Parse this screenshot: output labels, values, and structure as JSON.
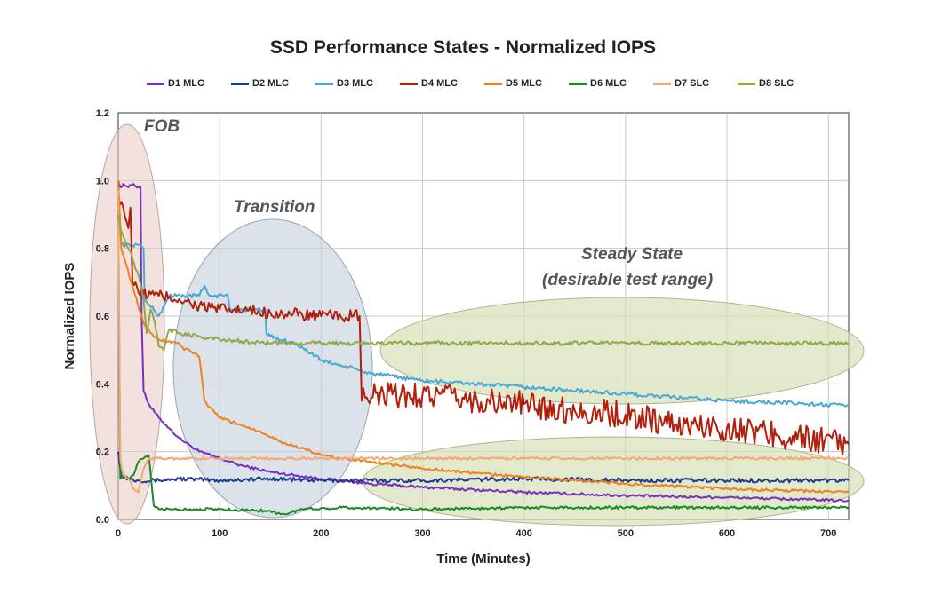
{
  "chart_data": {
    "type": "line",
    "title": "SSD Performance States - Normalized IOPS",
    "xlabel": "Time (Minutes)",
    "ylabel": "Normalized IOPS",
    "xlim": [
      0,
      720
    ],
    "ylim": [
      0,
      1.2
    ],
    "xticks": [
      0,
      100,
      200,
      300,
      400,
      500,
      600,
      700
    ],
    "yticks": [
      0.0,
      0.2,
      0.4,
      0.6,
      0.8,
      1.0,
      1.2
    ],
    "ytick_labels": [
      "0.0",
      "0.2",
      "0.4",
      "0.6",
      "0.8",
      "1.0",
      "1.2"
    ],
    "grid": true,
    "legend_position": "top",
    "series": [
      {
        "name": "D1 MLC",
        "color": "#7b2fbe",
        "points": [
          [
            0,
            1.0
          ],
          [
            2,
            0.98
          ],
          [
            5,
            0.99
          ],
          [
            10,
            0.98
          ],
          [
            15,
            0.99
          ],
          [
            20,
            0.98
          ],
          [
            22,
            0.98
          ],
          [
            23,
            0.6
          ],
          [
            25,
            0.38
          ],
          [
            30,
            0.34
          ],
          [
            40,
            0.3
          ],
          [
            50,
            0.27
          ],
          [
            60,
            0.24
          ],
          [
            70,
            0.22
          ],
          [
            80,
            0.2
          ],
          [
            100,
            0.18
          ],
          [
            120,
            0.16
          ],
          [
            150,
            0.14
          ],
          [
            200,
            0.12
          ],
          [
            250,
            0.105
          ],
          [
            300,
            0.095
          ],
          [
            400,
            0.08
          ],
          [
            500,
            0.07
          ],
          [
            600,
            0.065
          ],
          [
            720,
            0.055
          ]
        ]
      },
      {
        "name": "D2 MLC",
        "color": "#1f3a93",
        "points": [
          [
            0,
            0.2
          ],
          [
            3,
            0.13
          ],
          [
            10,
            0.12
          ],
          [
            20,
            0.115
          ],
          [
            40,
            0.115
          ],
          [
            60,
            0.12
          ],
          [
            100,
            0.115
          ],
          [
            150,
            0.12
          ],
          [
            200,
            0.115
          ],
          [
            300,
            0.115
          ],
          [
            400,
            0.12
          ],
          [
            500,
            0.115
          ],
          [
            600,
            0.115
          ],
          [
            720,
            0.115
          ]
        ]
      },
      {
        "name": "D3 MLC",
        "color": "#4aa8d8",
        "points": [
          [
            0,
            0.99
          ],
          [
            3,
            0.81
          ],
          [
            20,
            0.81
          ],
          [
            25,
            0.8
          ],
          [
            26,
            0.65
          ],
          [
            40,
            0.6
          ],
          [
            50,
            0.66
          ],
          [
            80,
            0.66
          ],
          [
            85,
            0.69
          ],
          [
            90,
            0.66
          ],
          [
            108,
            0.66
          ],
          [
            110,
            0.62
          ],
          [
            145,
            0.62
          ],
          [
            146,
            0.55
          ],
          [
            150,
            0.54
          ],
          [
            160,
            0.53
          ],
          [
            175,
            0.52
          ],
          [
            190,
            0.49
          ],
          [
            200,
            0.47
          ],
          [
            250,
            0.43
          ],
          [
            300,
            0.41
          ],
          [
            400,
            0.39
          ],
          [
            500,
            0.37
          ],
          [
            600,
            0.35
          ],
          [
            650,
            0.345
          ],
          [
            720,
            0.335
          ]
        ]
      },
      {
        "name": "D4 MLC",
        "color": "#b0200c",
        "points": [
          [
            0,
            0.96
          ],
          [
            5,
            0.92
          ],
          [
            10,
            0.86
          ],
          [
            12,
            0.92
          ],
          [
            14,
            0.7
          ],
          [
            20,
            0.67
          ],
          [
            40,
            0.66
          ],
          [
            60,
            0.65
          ],
          [
            80,
            0.63
          ],
          [
            100,
            0.62
          ],
          [
            150,
            0.61
          ],
          [
            200,
            0.6
          ],
          [
            238,
            0.6
          ],
          [
            240,
            0.35
          ],
          [
            245,
            0.36
          ],
          [
            300,
            0.37
          ],
          [
            350,
            0.35
          ],
          [
            400,
            0.34
          ],
          [
            450,
            0.32
          ],
          [
            500,
            0.31
          ],
          [
            550,
            0.28
          ],
          [
            600,
            0.27
          ],
          [
            650,
            0.25
          ],
          [
            720,
            0.22
          ]
        ]
      },
      {
        "name": "D5 MLC",
        "color": "#f0821e",
        "points": [
          [
            0,
            1.0
          ],
          [
            3,
            0.8
          ],
          [
            8,
            0.75
          ],
          [
            15,
            0.68
          ],
          [
            25,
            0.58
          ],
          [
            30,
            0.56
          ],
          [
            35,
            0.54
          ],
          [
            40,
            0.53
          ],
          [
            60,
            0.52
          ],
          [
            65,
            0.5
          ],
          [
            70,
            0.5
          ],
          [
            75,
            0.49
          ],
          [
            80,
            0.48
          ],
          [
            85,
            0.35
          ],
          [
            90,
            0.33
          ],
          [
            100,
            0.3
          ],
          [
            120,
            0.28
          ],
          [
            140,
            0.26
          ],
          [
            160,
            0.23
          ],
          [
            180,
            0.21
          ],
          [
            200,
            0.19
          ],
          [
            220,
            0.18
          ],
          [
            250,
            0.17
          ],
          [
            300,
            0.15
          ],
          [
            400,
            0.125
          ],
          [
            500,
            0.105
          ],
          [
            600,
            0.09
          ],
          [
            720,
            0.08
          ]
        ]
      },
      {
        "name": "D6 MLC",
        "color": "#1b8a24",
        "points": [
          [
            0,
            0.95
          ],
          [
            2,
            0.12
          ],
          [
            5,
            0.13
          ],
          [
            10,
            0.12
          ],
          [
            15,
            0.13
          ],
          [
            20,
            0.17
          ],
          [
            25,
            0.18
          ],
          [
            30,
            0.19
          ],
          [
            35,
            0.04
          ],
          [
            40,
            0.03
          ],
          [
            60,
            0.03
          ],
          [
            100,
            0.03
          ],
          [
            150,
            0.025
          ],
          [
            160,
            0.015
          ],
          [
            170,
            0.02
          ],
          [
            180,
            0.03
          ],
          [
            220,
            0.035
          ],
          [
            300,
            0.03
          ],
          [
            400,
            0.035
          ],
          [
            500,
            0.035
          ],
          [
            600,
            0.035
          ],
          [
            720,
            0.035
          ]
        ]
      },
      {
        "name": "D7 SLC",
        "color": "#f2a974",
        "points": [
          [
            0,
            0.97
          ],
          [
            2,
            0.18
          ],
          [
            5,
            0.13
          ],
          [
            10,
            0.12
          ],
          [
            15,
            0.09
          ],
          [
            20,
            0.08
          ],
          [
            25,
            0.15
          ],
          [
            30,
            0.18
          ],
          [
            40,
            0.18
          ],
          [
            100,
            0.18
          ],
          [
            200,
            0.18
          ],
          [
            300,
            0.18
          ],
          [
            400,
            0.18
          ],
          [
            500,
            0.18
          ],
          [
            600,
            0.18
          ],
          [
            720,
            0.18
          ]
        ]
      },
      {
        "name": "D8 SLC",
        "color": "#8fa848",
        "points": [
          [
            0,
            0.9
          ],
          [
            3,
            0.85
          ],
          [
            10,
            0.8
          ],
          [
            20,
            0.72
          ],
          [
            25,
            0.65
          ],
          [
            28,
            0.55
          ],
          [
            32,
            0.62
          ],
          [
            36,
            0.58
          ],
          [
            40,
            0.51
          ],
          [
            45,
            0.5
          ],
          [
            50,
            0.56
          ],
          [
            60,
            0.55
          ],
          [
            80,
            0.54
          ],
          [
            100,
            0.53
          ],
          [
            150,
            0.52
          ],
          [
            200,
            0.52
          ],
          [
            300,
            0.52
          ],
          [
            400,
            0.52
          ],
          [
            500,
            0.52
          ],
          [
            600,
            0.52
          ],
          [
            720,
            0.52
          ]
        ]
      }
    ],
    "annotations": [
      {
        "text": "FOB"
      },
      {
        "text": "Transition"
      },
      {
        "text": "Steady State"
      },
      {
        "text": "(desirable test range)"
      }
    ]
  }
}
